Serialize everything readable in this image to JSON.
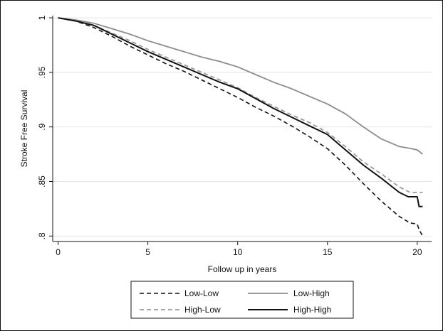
{
  "chart_data": {
    "type": "line",
    "xlabel": "Follow up in years",
    "ylabel": "Stroke Free Survival",
    "xlim": [
      -0.3,
      20.8
    ],
    "ylim": [
      0.795,
      1.002
    ],
    "x_ticks": [
      0,
      5,
      10,
      15,
      20
    ],
    "x_tick_labels": [
      "0",
      "5",
      "10",
      "15",
      "20"
    ],
    "y_ticks": [
      0.8,
      0.85,
      0.9,
      0.95,
      1.0
    ],
    "y_tick_labels": [
      ".8",
      ".85",
      ".9",
      ".95",
      "1"
    ],
    "grid": "horizontal",
    "legend_position": "bottom",
    "series": [
      {
        "name": "Low-Low",
        "color": "#111111",
        "style": "dashed",
        "x": [
          0,
          1,
          2,
          3,
          4,
          5,
          6,
          7,
          8,
          9,
          10,
          11,
          12,
          13,
          14,
          15,
          16,
          17,
          18,
          19,
          19.6,
          20,
          20.1,
          20.3
        ],
        "y": [
          1.0,
          0.997,
          0.991,
          0.983,
          0.974,
          0.966,
          0.958,
          0.951,
          0.943,
          0.935,
          0.927,
          0.918,
          0.91,
          0.901,
          0.891,
          0.88,
          0.865,
          0.848,
          0.832,
          0.818,
          0.812,
          0.811,
          0.806,
          0.8
        ]
      },
      {
        "name": "Low-High",
        "color": "#8c8c8c",
        "style": "solid",
        "x": [
          0,
          1,
          2,
          3,
          4,
          5,
          6,
          7,
          8,
          9,
          10,
          11,
          12,
          13,
          14,
          15,
          16,
          17,
          18,
          19,
          19.7,
          20,
          20.3
        ],
        "y": [
          1.0,
          0.998,
          0.995,
          0.99,
          0.985,
          0.979,
          0.974,
          0.969,
          0.964,
          0.96,
          0.955,
          0.948,
          0.941,
          0.935,
          0.928,
          0.921,
          0.912,
          0.9,
          0.889,
          0.882,
          0.88,
          0.879,
          0.875
        ]
      },
      {
        "name": "High-Low",
        "color": "#9a9a9a",
        "style": "dashed",
        "x": [
          0,
          1,
          2,
          3,
          4,
          5,
          6,
          7,
          8,
          9,
          10,
          11,
          12,
          13,
          14,
          15,
          16,
          17,
          18,
          19,
          19.6,
          20,
          20.3
        ],
        "y": [
          1.0,
          0.997,
          0.993,
          0.986,
          0.979,
          0.971,
          0.964,
          0.957,
          0.95,
          0.943,
          0.936,
          0.927,
          0.919,
          0.911,
          0.904,
          0.895,
          0.882,
          0.868,
          0.857,
          0.845,
          0.84,
          0.84,
          0.84
        ]
      },
      {
        "name": "High-High",
        "color": "#111111",
        "style": "solid",
        "x": [
          0,
          1,
          2,
          3,
          4,
          5,
          6,
          7,
          8,
          9,
          10,
          11,
          12,
          13,
          14,
          15,
          16,
          17,
          18,
          19,
          19.5,
          20,
          20.1,
          20.3
        ],
        "y": [
          1.0,
          0.997,
          0.993,
          0.985,
          0.977,
          0.969,
          0.962,
          0.955,
          0.948,
          0.941,
          0.935,
          0.926,
          0.917,
          0.909,
          0.901,
          0.893,
          0.879,
          0.865,
          0.853,
          0.84,
          0.836,
          0.836,
          0.827,
          0.827
        ]
      }
    ]
  }
}
